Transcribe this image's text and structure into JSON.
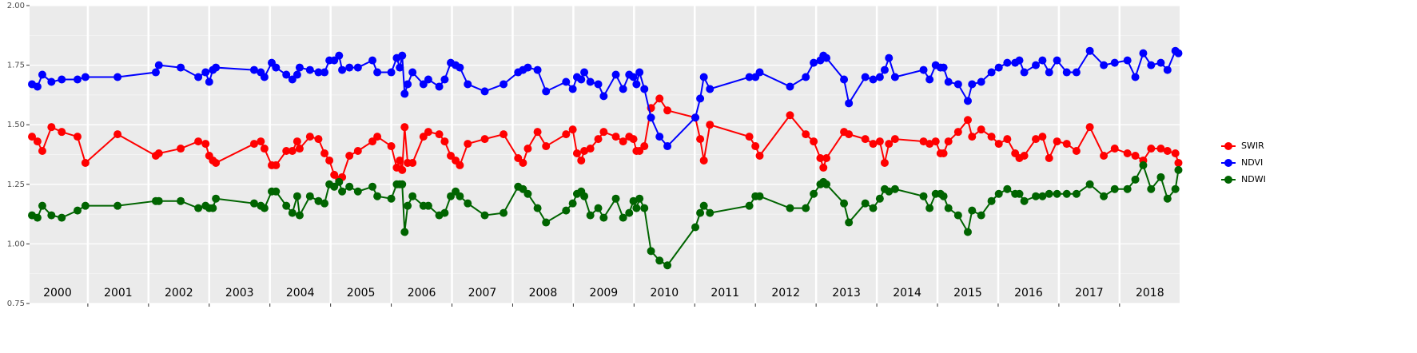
{
  "chart_data": {
    "type": "line",
    "x": [
      2000.08,
      2000.17,
      2000.25,
      2000.4,
      2000.57,
      2000.83,
      2000.96,
      2001.49,
      2002.12,
      2002.17,
      2002.53,
      2002.82,
      2002.94,
      2003.0,
      2003.06,
      2003.11,
      2003.74,
      2003.85,
      2003.91,
      2004.03,
      2004.1,
      2004.27,
      2004.37,
      2004.45,
      2004.49,
      2004.66,
      2004.8,
      2004.9,
      2004.98,
      2005.06,
      2005.14,
      2005.19,
      2005.31,
      2005.45,
      2005.69,
      2005.77,
      2006.0,
      2006.09,
      2006.14,
      2006.18,
      2006.22,
      2006.27,
      2006.35,
      2006.53,
      2006.61,
      2006.79,
      2006.88,
      2006.98,
      2007.06,
      2007.13,
      2007.26,
      2007.54,
      2007.85,
      2008.09,
      2008.17,
      2008.25,
      2008.41,
      2008.55,
      2008.88,
      2008.99,
      2009.06,
      2009.13,
      2009.18,
      2009.28,
      2009.41,
      2009.5,
      2009.7,
      2009.82,
      2009.92,
      2009.99,
      2010.04,
      2010.09,
      2010.17,
      2010.28,
      2010.42,
      2010.55,
      2011.01,
      2011.09,
      2011.15,
      2011.25,
      2011.9,
      2012.0,
      2012.07,
      2012.57,
      2012.83,
      2012.96,
      2013.07,
      2013.12,
      2013.17,
      2013.46,
      2013.54,
      2013.81,
      2013.94,
      2014.05,
      2014.13,
      2014.2,
      2014.3,
      2014.77,
      2014.87,
      2014.97,
      2015.05,
      2015.1,
      2015.18,
      2015.34,
      2015.5,
      2015.57,
      2015.72,
      2015.89,
      2016.01,
      2016.15,
      2016.28,
      2016.35,
      2016.43,
      2016.62,
      2016.73,
      2016.84,
      2016.97,
      2017.13,
      2017.29,
      2017.51,
      2017.74,
      2017.92,
      2018.13,
      2018.26,
      2018.39,
      2018.52,
      2018.68,
      2018.79,
      2018.92,
      2018.97
    ],
    "series": [
      {
        "name": "SWIR",
        "color": "#ff0000",
        "values": [
          1.45,
          1.43,
          1.39,
          1.49,
          1.47,
          1.45,
          1.34,
          1.46,
          1.37,
          1.38,
          1.4,
          1.43,
          1.42,
          1.37,
          1.35,
          1.34,
          1.42,
          1.43,
          1.4,
          1.33,
          1.33,
          1.39,
          1.39,
          1.43,
          1.4,
          1.45,
          1.44,
          1.38,
          1.35,
          1.29,
          1.27,
          1.28,
          1.37,
          1.39,
          1.43,
          1.45,
          1.41,
          1.32,
          1.35,
          1.31,
          1.49,
          1.34,
          1.34,
          1.45,
          1.47,
          1.46,
          1.43,
          1.37,
          1.35,
          1.33,
          1.42,
          1.44,
          1.46,
          1.36,
          1.34,
          1.4,
          1.47,
          1.41,
          1.46,
          1.48,
          1.38,
          1.35,
          1.39,
          1.4,
          1.44,
          1.47,
          1.45,
          1.43,
          1.45,
          1.44,
          1.39,
          1.39,
          1.41,
          1.57,
          1.61,
          1.56,
          1.53,
          1.44,
          1.35,
          1.5,
          1.45,
          1.41,
          1.37,
          1.54,
          1.46,
          1.43,
          1.36,
          1.32,
          1.36,
          1.47,
          1.46,
          1.44,
          1.42,
          1.43,
          1.34,
          1.42,
          1.44,
          1.43,
          1.42,
          1.43,
          1.38,
          1.38,
          1.43,
          1.47,
          1.52,
          1.45,
          1.48,
          1.45,
          1.42,
          1.44,
          1.38,
          1.36,
          1.37,
          1.44,
          1.45,
          1.36,
          1.43,
          1.42,
          1.39,
          1.49,
          1.37,
          1.4,
          1.38,
          1.37,
          1.35,
          1.4,
          1.4,
          1.39,
          1.38,
          1.34
        ]
      },
      {
        "name": "NDVI",
        "color": "#0000ff",
        "values": [
          1.67,
          1.66,
          1.71,
          1.68,
          1.69,
          1.69,
          1.7,
          1.7,
          1.72,
          1.75,
          1.74,
          1.7,
          1.72,
          1.68,
          1.73,
          1.74,
          1.73,
          1.72,
          1.7,
          1.76,
          1.74,
          1.71,
          1.69,
          1.71,
          1.74,
          1.73,
          1.72,
          1.72,
          1.77,
          1.77,
          1.79,
          1.73,
          1.74,
          1.74,
          1.77,
          1.72,
          1.72,
          1.78,
          1.74,
          1.79,
          1.63,
          1.67,
          1.72,
          1.67,
          1.69,
          1.66,
          1.69,
          1.76,
          1.75,
          1.74,
          1.67,
          1.64,
          1.67,
          1.72,
          1.73,
          1.74,
          1.73,
          1.64,
          1.68,
          1.65,
          1.7,
          1.69,
          1.72,
          1.68,
          1.67,
          1.62,
          1.71,
          1.65,
          1.71,
          1.7,
          1.67,
          1.72,
          1.65,
          1.53,
          1.45,
          1.41,
          1.53,
          1.61,
          1.7,
          1.65,
          1.7,
          1.7,
          1.72,
          1.66,
          1.7,
          1.76,
          1.77,
          1.79,
          1.78,
          1.69,
          1.59,
          1.7,
          1.69,
          1.7,
          1.73,
          1.78,
          1.7,
          1.73,
          1.69,
          1.75,
          1.74,
          1.74,
          1.68,
          1.67,
          1.6,
          1.67,
          1.68,
          1.72,
          1.74,
          1.76,
          1.76,
          1.77,
          1.72,
          1.75,
          1.77,
          1.72,
          1.77,
          1.72,
          1.72,
          1.81,
          1.75,
          1.76,
          1.77,
          1.7,
          1.8,
          1.75,
          1.76,
          1.73,
          1.81,
          1.8
        ]
      },
      {
        "name": "NDWI",
        "color": "#006400",
        "values": [
          1.12,
          1.11,
          1.16,
          1.12,
          1.11,
          1.14,
          1.16,
          1.16,
          1.18,
          1.18,
          1.18,
          1.15,
          1.16,
          1.15,
          1.15,
          1.19,
          1.17,
          1.16,
          1.15,
          1.22,
          1.22,
          1.16,
          1.13,
          1.2,
          1.12,
          1.2,
          1.18,
          1.17,
          1.25,
          1.24,
          1.26,
          1.22,
          1.24,
          1.22,
          1.24,
          1.2,
          1.19,
          1.25,
          1.25,
          1.25,
          1.05,
          1.16,
          1.2,
          1.16,
          1.16,
          1.12,
          1.13,
          1.2,
          1.22,
          1.2,
          1.17,
          1.12,
          1.13,
          1.24,
          1.23,
          1.21,
          1.15,
          1.09,
          1.14,
          1.17,
          1.21,
          1.22,
          1.2,
          1.12,
          1.15,
          1.11,
          1.19,
          1.11,
          1.13,
          1.18,
          1.15,
          1.19,
          1.15,
          0.97,
          0.93,
          0.91,
          1.07,
          1.13,
          1.16,
          1.13,
          1.16,
          1.2,
          1.2,
          1.15,
          1.15,
          1.21,
          1.25,
          1.26,
          1.25,
          1.17,
          1.09,
          1.17,
          1.15,
          1.19,
          1.23,
          1.22,
          1.23,
          1.2,
          1.15,
          1.21,
          1.21,
          1.2,
          1.15,
          1.12,
          1.05,
          1.14,
          1.12,
          1.18,
          1.21,
          1.23,
          1.21,
          1.21,
          1.18,
          1.2,
          1.2,
          1.21,
          1.21,
          1.21,
          1.21,
          1.25,
          1.2,
          1.23,
          1.23,
          1.27,
          1.33,
          1.23,
          1.28,
          1.19,
          1.23,
          1.31
        ]
      }
    ],
    "xlim": [
      2000.04,
      2018.99
    ],
    "xticks": [
      2001,
      2002,
      2003,
      2004,
      2005,
      2006,
      2007,
      2008,
      2009,
      2010,
      2011,
      2012,
      2013,
      2014,
      2015,
      2016,
      2017,
      2018
    ],
    "year_labels": [
      {
        "value": 2000.5,
        "label": "2000"
      },
      {
        "value": 2001.5,
        "label": "2001"
      },
      {
        "value": 2002.5,
        "label": "2002"
      },
      {
        "value": 2003.5,
        "label": "2003"
      },
      {
        "value": 2004.5,
        "label": "2004"
      },
      {
        "value": 2005.5,
        "label": "2005"
      },
      {
        "value": 2006.5,
        "label": "2006"
      },
      {
        "value": 2007.5,
        "label": "2007"
      },
      {
        "value": 2008.5,
        "label": "2008"
      },
      {
        "value": 2009.5,
        "label": "2009"
      },
      {
        "value": 2010.5,
        "label": "2010"
      },
      {
        "value": 2011.5,
        "label": "2011"
      },
      {
        "value": 2012.5,
        "label": "2012"
      },
      {
        "value": 2013.5,
        "label": "2013"
      },
      {
        "value": 2014.5,
        "label": "2014"
      },
      {
        "value": 2015.5,
        "label": "2015"
      },
      {
        "value": 2016.5,
        "label": "2016"
      },
      {
        "value": 2017.5,
        "label": "2017"
      },
      {
        "value": 2018.5,
        "label": "2018"
      }
    ],
    "ylim": [
      0.75,
      2.0
    ],
    "yticks": [
      {
        "value": 0.75,
        "label": "0.75"
      },
      {
        "value": 1.0,
        "label": "1.00"
      },
      {
        "value": 1.25,
        "label": "1.25"
      },
      {
        "value": 1.5,
        "label": "1.50"
      },
      {
        "value": 1.75,
        "label": "1.75"
      },
      {
        "value": 2.0,
        "label": "2.00"
      }
    ],
    "grid": true,
    "legend": "right"
  }
}
